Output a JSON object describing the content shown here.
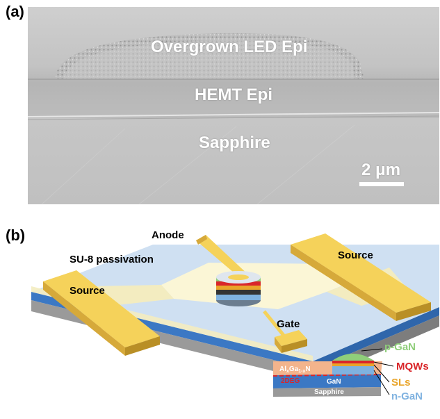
{
  "panel_a": {
    "label": "(a)",
    "layers": {
      "led": "Overgrown LED Epi",
      "hemt": "HEMT Epi",
      "substrate": "Sapphire"
    },
    "scale_bar": "2 μm"
  },
  "panel_b": {
    "label": "(b)",
    "labels": {
      "anode": "Anode",
      "passivation": "SU-8 passivation",
      "source_left": "Source",
      "source_right": "Source",
      "gate": "Gate"
    },
    "inset": {
      "p_gan": "p-GaN",
      "mqws": "MQWs",
      "sls": "SLs",
      "n_gan": "n-GaN",
      "algan_1": "Al",
      "algan_2": "x",
      "algan_3": "Ga",
      "algan_4": "1-x",
      "algan_5": "N",
      "twodeg": "2DEG",
      "gan": "GaN",
      "sapphire": "Sapphire"
    }
  },
  "colors": {
    "gold": "#f5d25a",
    "pale_blue": "#c8daf0",
    "blue": "#3b78c4",
    "p_gan": "#8fce7a",
    "mqw": "#d9262a",
    "sl": "#e9a52a",
    "n_gan": "#7fb2e0"
  }
}
